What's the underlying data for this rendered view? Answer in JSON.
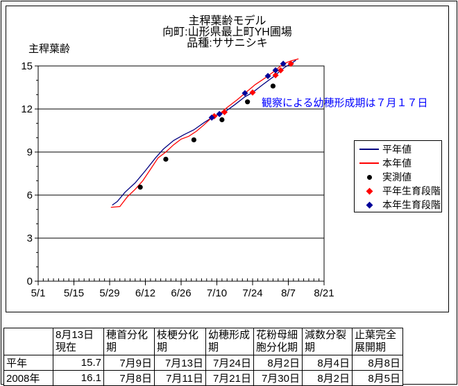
{
  "chart_data": {
    "type": "line",
    "title": "主稈葉齢モデル",
    "subtitle": [
      "向町:山形県最上町YH圃場",
      "品種:ササニシキ"
    ],
    "xlabel": "",
    "ylabel": "主稈葉齢",
    "ylim": [
      0,
      15
    ],
    "y_major_ticks": [
      0,
      3,
      6,
      9,
      12,
      15
    ],
    "x_unit": "days from 5/1",
    "x_range_days": [
      0,
      112
    ],
    "x_tick_positions_days": [
      0,
      14,
      28,
      42,
      56,
      70,
      84,
      98,
      112
    ],
    "x_tick_labels": [
      "5/1",
      "5/15",
      "5/29",
      "6/12",
      "6/26",
      "7/10",
      "7/24",
      "8/7",
      "8/21"
    ],
    "grid": "horizontal-major",
    "legend_position": "right",
    "annotation": "観察による幼穂形成期は７月１７日",
    "annotation_color": "#0000FF",
    "series": [
      {
        "id": "normal-year-line",
        "name": "平年値",
        "kind": "line",
        "color": "#000080",
        "points": [
          [
            29,
            5.3
          ],
          [
            31,
            5.55
          ],
          [
            34,
            6.2
          ],
          [
            38,
            6.85
          ],
          [
            42,
            7.7
          ],
          [
            46,
            8.6
          ],
          [
            49,
            9.2
          ],
          [
            53,
            9.8
          ],
          [
            57,
            10.2
          ],
          [
            61,
            10.55
          ],
          [
            65,
            11.05
          ],
          [
            69,
            11.5
          ],
          [
            73,
            11.78
          ],
          [
            77,
            12.3
          ],
          [
            81,
            12.85
          ],
          [
            84,
            13.15
          ],
          [
            88,
            13.7
          ],
          [
            91,
            14.1
          ],
          [
            93,
            14.35
          ],
          [
            95,
            14.7
          ],
          [
            97,
            14.95
          ],
          [
            99,
            15.15
          ],
          [
            101,
            15.4
          ]
        ]
      },
      {
        "id": "this-year-line",
        "name": "本年値",
        "kind": "line",
        "color": "#FF0000",
        "points": [
          [
            28.5,
            5.15
          ],
          [
            32,
            5.2
          ],
          [
            35,
            5.9
          ],
          [
            38,
            6.4
          ],
          [
            41,
            7.0
          ],
          [
            44,
            7.8
          ],
          [
            47,
            8.6
          ],
          [
            50,
            9.0
          ],
          [
            53,
            9.5
          ],
          [
            56,
            9.9
          ],
          [
            59,
            10.1
          ],
          [
            62,
            10.45
          ],
          [
            65,
            10.9
          ],
          [
            68,
            11.4
          ],
          [
            71,
            11.65
          ],
          [
            74,
            12.1
          ],
          [
            78,
            12.65
          ],
          [
            81,
            13.1
          ],
          [
            85,
            13.7
          ],
          [
            88,
            14.05
          ],
          [
            90,
            14.3
          ],
          [
            93,
            14.7
          ],
          [
            96,
            15.15
          ],
          [
            99,
            15.35
          ],
          [
            102,
            15.5
          ]
        ]
      },
      {
        "id": "measured",
        "name": "実測値",
        "kind": "scatter",
        "marker": "circle",
        "color": "#000000",
        "points": [
          [
            40,
            6.55
          ],
          [
            50,
            8.5
          ],
          [
            61,
            9.85
          ],
          [
            72,
            11.25
          ],
          [
            82,
            12.5
          ],
          [
            92,
            13.6
          ]
        ],
        "dates": [
          "6/10",
          "6/20",
          "7/1",
          "7/12",
          "7/22",
          "8/1"
        ]
      },
      {
        "id": "normal-stage",
        "name": "平年生育段階",
        "kind": "scatter",
        "marker": "diamond",
        "color": "#FF0000",
        "points": [
          [
            69,
            11.5
          ],
          [
            73,
            11.78
          ],
          [
            84,
            13.15
          ],
          [
            93,
            14.35
          ],
          [
            95,
            14.7
          ],
          [
            99,
            15.15
          ]
        ],
        "dates": [
          "7月9日",
          "7月13日",
          "7月24日",
          "8月2日",
          "8月4日",
          "8月8日"
        ]
      },
      {
        "id": "this-year-stage",
        "name": "本年生育段階",
        "kind": "scatter",
        "marker": "diamond",
        "color": "#000099",
        "points": [
          [
            68,
            11.4
          ],
          [
            71,
            11.65
          ],
          [
            81,
            13.1
          ],
          [
            90,
            14.3
          ],
          [
            93,
            14.7
          ],
          [
            96,
            15.15
          ]
        ],
        "dates": [
          "7月8日",
          "7月11日",
          "7月21日",
          "7月30日",
          "8月2日",
          "8月5日"
        ]
      }
    ]
  },
  "table": {
    "headers": [
      "",
      "8月13日\n現在",
      "穂首分化\n期",
      "枝梗分化\n期",
      "幼穂形成\n期",
      "花粉母細\n胞分化期",
      "減数分裂\n期",
      "止葉完全\n展開期"
    ],
    "rows": [
      {
        "label": "平年",
        "values": [
          "15.7",
          "7月9日",
          "7月13日",
          "7月24日",
          "8月2日",
          "8月4日",
          "8月8日"
        ]
      },
      {
        "label": "2008年",
        "values": [
          "16.1",
          "7月8日",
          "7月11日",
          "7月21日",
          "7月30日",
          "8月2日",
          "8月5日"
        ]
      }
    ]
  },
  "colors": {
    "normal_line": "#000080",
    "this_year_line": "#FF0000",
    "measured": "#000000",
    "normal_stage": "#FF0000",
    "this_year_stage": "#000099",
    "annotation": "#0000FF",
    "border": "#000000"
  }
}
